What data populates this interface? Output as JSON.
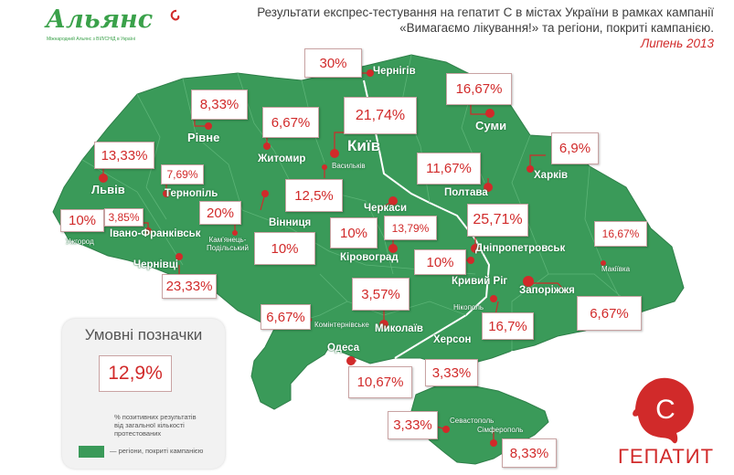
{
  "logo": {
    "name": "Альянс",
    "subtitle": "Міжнародний Альянс з ВІЛ/СНІД в Україні"
  },
  "title": {
    "line1": "Результати експрес-тестування на гепатит С в містах України в рамках кампанії",
    "line2": "«Вимагаємо лікування!» та регіони, покриті кампанією.",
    "line3": "Липень 2013"
  },
  "colors": {
    "region_covered": "#3a9a59",
    "region_uncovered": "#ffffff",
    "value_text": "#d12a2a",
    "marker": "#d12a2a"
  },
  "cities": [
    {
      "name": "Чернігів",
      "value": "30%"
    },
    {
      "name": "Суми",
      "value": "16,67%"
    },
    {
      "name": "Рівне",
      "value": "8,33%"
    },
    {
      "name": "Житомир",
      "value": "6,67%"
    },
    {
      "name": "Київ",
      "value": "21,74%"
    },
    {
      "name": "Васильків",
      "value": "12,5%"
    },
    {
      "name": "Львів",
      "value": "13,33%"
    },
    {
      "name": "Тернопіль",
      "value": "7,69%"
    },
    {
      "name": "Харків",
      "value": "6,9%"
    },
    {
      "name": "Полтава",
      "value": "11,67%"
    },
    {
      "name": "Ужгород",
      "value": "10%"
    },
    {
      "name": "Івано-Франківськ",
      "value": "3,85%"
    },
    {
      "name": "Кам'янець-Подільський",
      "value": "20%"
    },
    {
      "name": "Вінниця",
      "value": "10%"
    },
    {
      "name": "Черкаси",
      "value": "10%"
    },
    {
      "name": "Кіровоград",
      "value": "13,79%"
    },
    {
      "name": "Дніпропетровськ",
      "value": "25,71%"
    },
    {
      "name": "Макіївка",
      "value": "16,67%"
    },
    {
      "name": "Чернівці",
      "value": "23,33%"
    },
    {
      "name": "Кривий Ріг",
      "value": "10%"
    },
    {
      "name": "Запоріжжя",
      "value": "6,67%"
    },
    {
      "name": "Комінтернівське",
      "value": "6,67%"
    },
    {
      "name": "Миколаїв",
      "value": "3,57%"
    },
    {
      "name": "Нікополь",
      "value": "16,7%"
    },
    {
      "name": "Одеса",
      "value": "10,67%"
    },
    {
      "name": "Херсон",
      "value": "3,33%"
    },
    {
      "name": "Севастополь",
      "value": "3,33%"
    },
    {
      "name": "Сімферополь",
      "value": "8,33%"
    }
  ],
  "legend": {
    "title": "Умовні позначки",
    "sample_value": "12,9%",
    "sample_note_line1": "% позитивних результатів",
    "sample_note_line2": "від загальної кількості",
    "sample_note_line3": "протестованих",
    "region_label": "— регіони, покриті кампанією"
  },
  "hepatitis_badge": {
    "letter": "С",
    "word": "ГЕПАТИТ"
  }
}
